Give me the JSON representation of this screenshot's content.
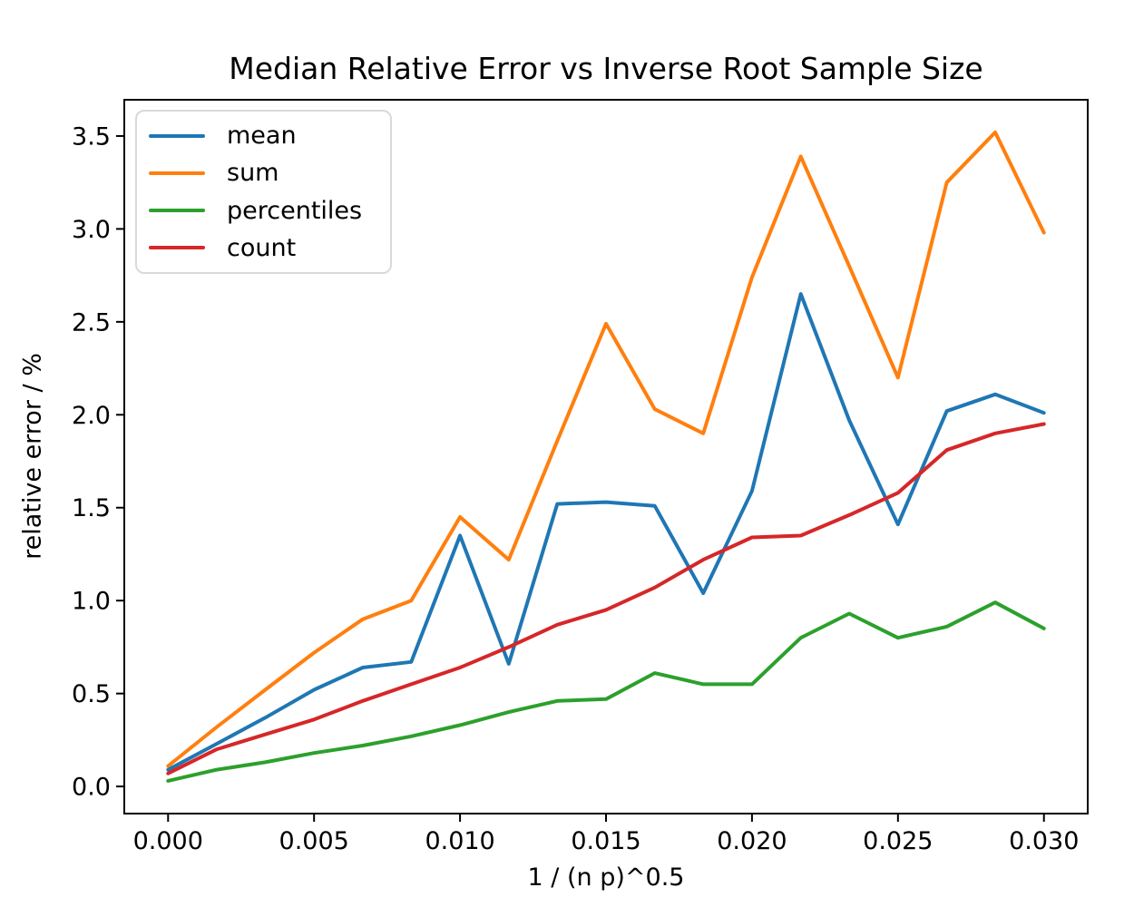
{
  "chart_data": {
    "type": "line",
    "title": "Median Relative Error vs Inverse Root Sample Size",
    "xlabel": "1 / (n p)^0.5",
    "ylabel": "relative error / %",
    "x": [
      0.0,
      0.00167,
      0.00333,
      0.005,
      0.00667,
      0.00833,
      0.01,
      0.01167,
      0.01333,
      0.015,
      0.01667,
      0.01833,
      0.02,
      0.02167,
      0.02333,
      0.025,
      0.02667,
      0.02833,
      0.03
    ],
    "series": [
      {
        "name": "mean",
        "color": "#1f77b4",
        "values": [
          0.09,
          0.23,
          0.37,
          0.52,
          0.64,
          0.67,
          1.35,
          0.66,
          1.52,
          1.53,
          1.51,
          1.04,
          1.59,
          2.65,
          1.97,
          1.41,
          2.02,
          2.11,
          2.01
        ]
      },
      {
        "name": "sum",
        "color": "#ff7f0e",
        "values": [
          0.11,
          0.32,
          0.52,
          0.72,
          0.9,
          1.0,
          1.45,
          1.22,
          1.86,
          2.49,
          2.03,
          1.9,
          2.74,
          3.39,
          2.8,
          2.2,
          3.25,
          3.52,
          2.98
        ]
      },
      {
        "name": "percentiles",
        "color": "#2ca02c",
        "values": [
          0.03,
          0.09,
          0.13,
          0.18,
          0.22,
          0.27,
          0.33,
          0.4,
          0.46,
          0.47,
          0.61,
          0.55,
          0.55,
          0.8,
          0.93,
          0.8,
          0.86,
          0.99,
          0.85
        ]
      },
      {
        "name": "count",
        "color": "#d62728",
        "values": [
          0.07,
          0.2,
          0.28,
          0.36,
          0.46,
          0.55,
          0.64,
          0.75,
          0.87,
          0.95,
          1.07,
          1.22,
          1.34,
          1.35,
          1.46,
          1.58,
          1.81,
          1.9,
          1.95
        ]
      }
    ],
    "xlim": [
      -0.0015,
      0.0315
    ],
    "ylim": [
      -0.146,
      3.695
    ],
    "xticks": {
      "values": [
        0,
        0.005,
        0.01,
        0.015,
        0.02,
        0.025,
        0.03
      ],
      "labels": [
        "0.000",
        "0.005",
        "0.010",
        "0.015",
        "0.020",
        "0.025",
        "0.030"
      ]
    },
    "yticks": {
      "values": [
        0,
        0.5,
        1,
        1.5,
        2,
        2.5,
        3,
        3.5
      ],
      "labels": [
        "0.0",
        "0.5",
        "1.0",
        "1.5",
        "2.0",
        "2.5",
        "3.0",
        "3.5"
      ]
    },
    "legend": {
      "position": "upper left"
    },
    "grid": false,
    "spine_color": "#000000",
    "background": "#ffffff"
  }
}
